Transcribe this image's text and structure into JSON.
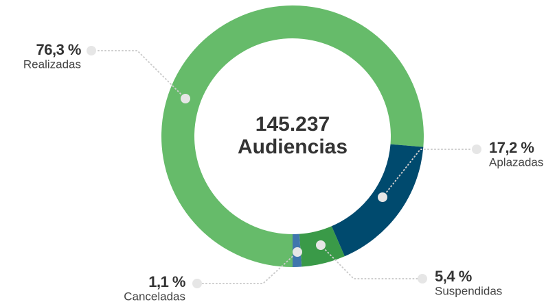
{
  "chart_data": {
    "type": "donut",
    "total": {
      "value": 145237,
      "label": "145.237"
    },
    "total_caption": "Audiencias",
    "categories": [
      "Realizadas",
      "Aplazadas",
      "Suspendidas",
      "Canceladas"
    ],
    "values": [
      76.3,
      17.2,
      5.4,
      1.1
    ],
    "value_labels": [
      "76,3 %",
      "17,2 %",
      "5,4 %",
      "1,1 %"
    ],
    "colors": [
      "#66bb6a",
      "#004a6e",
      "#3a9a48",
      "#3f76ad"
    ]
  }
}
